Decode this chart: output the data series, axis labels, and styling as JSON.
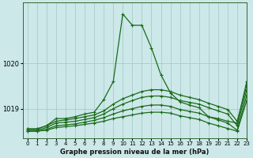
{
  "title": "Graphe pression niveau de la mer (hPa)",
  "background_color": "#cce8e8",
  "grid_color": "#aacccc",
  "line_color": "#1a6b1a",
  "xlim": [
    -0.5,
    23
  ],
  "ylim": [
    1018.35,
    1021.35
  ],
  "yticks": [
    1019,
    1020
  ],
  "xticks": [
    0,
    1,
    2,
    3,
    4,
    5,
    6,
    7,
    8,
    9,
    10,
    11,
    12,
    13,
    14,
    15,
    16,
    17,
    18,
    19,
    20,
    21,
    22,
    23
  ],
  "hours": [
    0,
    1,
    2,
    3,
    4,
    5,
    6,
    7,
    8,
    9,
    10,
    11,
    12,
    13,
    14,
    15,
    16,
    17,
    18,
    19,
    20,
    21,
    22,
    23
  ],
  "line1": [
    1018.55,
    1018.55,
    1018.62,
    1018.78,
    1018.78,
    1018.82,
    1018.88,
    1018.92,
    1019.2,
    1019.6,
    1021.1,
    1020.85,
    1020.85,
    1020.35,
    1019.75,
    1019.35,
    1019.15,
    1019.08,
    1019.02,
    1018.82,
    1018.78,
    1018.72,
    1018.68,
    1019.6
  ],
  "line2": [
    1018.55,
    1018.55,
    1018.62,
    1018.72,
    1018.75,
    1018.78,
    1018.82,
    1018.86,
    1018.95,
    1019.1,
    1019.22,
    1019.3,
    1019.38,
    1019.42,
    1019.42,
    1019.38,
    1019.3,
    1019.25,
    1019.2,
    1019.12,
    1019.05,
    1018.98,
    1018.72,
    1019.52
  ],
  "line3": [
    1018.52,
    1018.52,
    1018.58,
    1018.68,
    1018.7,
    1018.72,
    1018.76,
    1018.8,
    1018.88,
    1019.0,
    1019.1,
    1019.18,
    1019.25,
    1019.28,
    1019.28,
    1019.25,
    1019.18,
    1019.14,
    1019.1,
    1019.02,
    1018.95,
    1018.88,
    1018.62,
    1019.42
  ],
  "line4": [
    1018.5,
    1018.5,
    1018.54,
    1018.62,
    1018.64,
    1018.66,
    1018.7,
    1018.74,
    1018.8,
    1018.88,
    1018.95,
    1019.0,
    1019.05,
    1019.08,
    1019.08,
    1019.05,
    1018.98,
    1018.94,
    1018.9,
    1018.82,
    1018.75,
    1018.68,
    1018.52,
    1019.3
  ],
  "line5": [
    1018.5,
    1018.5,
    1018.52,
    1018.58,
    1018.6,
    1018.62,
    1018.65,
    1018.68,
    1018.72,
    1018.78,
    1018.82,
    1018.86,
    1018.9,
    1018.92,
    1018.92,
    1018.9,
    1018.84,
    1018.8,
    1018.76,
    1018.68,
    1018.62,
    1018.56,
    1018.5,
    1019.18
  ]
}
